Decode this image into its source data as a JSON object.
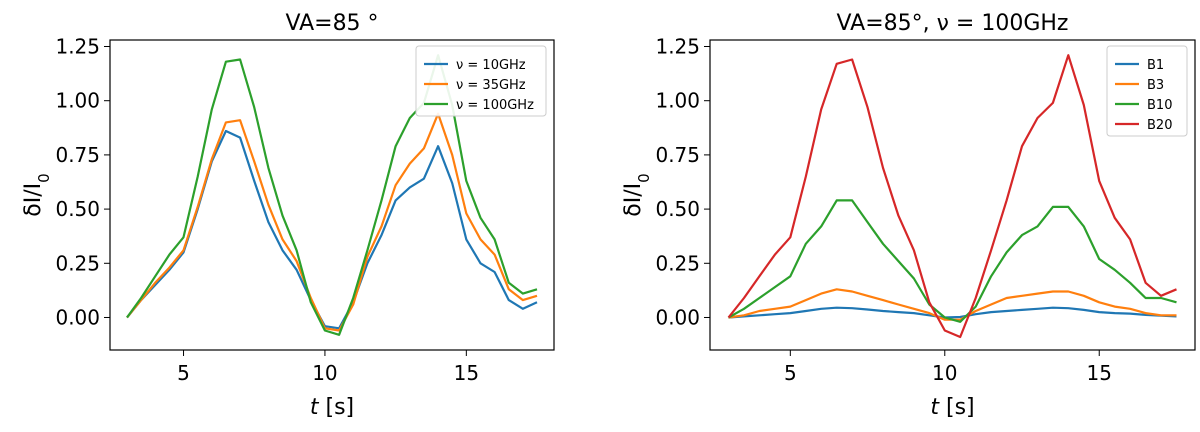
{
  "chart_data": [
    {
      "type": "line",
      "title": "VA=85$^\\circ$",
      "title_display": "VA=85 °",
      "xlabel": "t [s]",
      "ylabel": "δI/I0",
      "xlim": [
        2.4,
        18.1
      ],
      "ylim": [
        -0.15,
        1.28
      ],
      "xticks": [
        5,
        10,
        15
      ],
      "xtick_labels": [
        "5",
        "10",
        "15"
      ],
      "yticks": [
        0,
        0.25,
        0.5,
        0.75,
        1.0,
        1.25
      ],
      "ytick_labels": [
        "0.00",
        "0.25",
        "0.50",
        "0.75",
        "1.00",
        "1.25"
      ],
      "grid": false,
      "legend_position": "upper-right",
      "x": [
        3.0,
        3.5,
        4.0,
        4.5,
        5.0,
        5.5,
        6.0,
        6.5,
        7.0,
        7.5,
        8.0,
        8.5,
        9.0,
        9.5,
        10.0,
        10.5,
        11.0,
        11.5,
        12.0,
        12.5,
        13.0,
        13.5,
        14.0,
        14.5,
        15.0,
        15.5,
        16.0,
        16.5,
        17.0,
        17.5
      ],
      "series": [
        {
          "name": "ν = 10GHz",
          "color": "#1f77b4",
          "values": [
            0.0,
            0.08,
            0.15,
            0.22,
            0.3,
            0.5,
            0.72,
            0.86,
            0.83,
            0.63,
            0.44,
            0.31,
            0.22,
            0.08,
            -0.04,
            -0.05,
            0.07,
            0.25,
            0.38,
            0.54,
            0.6,
            0.64,
            0.79,
            0.62,
            0.36,
            0.25,
            0.21,
            0.08,
            0.04,
            0.07
          ]
        },
        {
          "name": "ν = 35GHz",
          "color": "#ff7f0e",
          "values": [
            0.0,
            0.08,
            0.16,
            0.23,
            0.31,
            0.51,
            0.73,
            0.9,
            0.91,
            0.72,
            0.52,
            0.36,
            0.26,
            0.09,
            -0.05,
            -0.06,
            0.06,
            0.28,
            0.42,
            0.61,
            0.71,
            0.78,
            0.94,
            0.75,
            0.48,
            0.36,
            0.29,
            0.13,
            0.08,
            0.1
          ]
        },
        {
          "name": "ν = 100GHz",
          "color": "#2ca02c",
          "values": [
            0.0,
            0.09,
            0.19,
            0.29,
            0.37,
            0.65,
            0.96,
            1.18,
            1.19,
            0.97,
            0.69,
            0.47,
            0.31,
            0.07,
            -0.06,
            -0.08,
            0.09,
            0.31,
            0.54,
            0.79,
            0.92,
            0.99,
            1.21,
            0.98,
            0.63,
            0.46,
            0.36,
            0.16,
            0.11,
            0.13
          ]
        }
      ]
    },
    {
      "type": "line",
      "title": "VA=85$^\\circ$,$\\nu$ = 100GHz",
      "title_display": "VA=85°, ν = 100GHz",
      "xlabel": "t [s]",
      "ylabel": "δI/I0",
      "xlim": [
        2.4,
        18.1
      ],
      "ylim": [
        -0.15,
        1.28
      ],
      "xticks": [
        5,
        10,
        15
      ],
      "xtick_labels": [
        "5",
        "10",
        "15"
      ],
      "yticks": [
        0,
        0.25,
        0.5,
        0.75,
        1.0,
        1.25
      ],
      "ytick_labels": [
        "0.00",
        "0.25",
        "0.50",
        "0.75",
        "1.00",
        "1.25"
      ],
      "grid": false,
      "legend_position": "upper-right",
      "x": [
        3.0,
        3.5,
        4.0,
        4.5,
        5.0,
        5.5,
        6.0,
        6.5,
        7.0,
        7.5,
        8.0,
        8.5,
        9.0,
        9.5,
        10.0,
        10.5,
        11.0,
        11.5,
        12.0,
        12.5,
        13.0,
        13.5,
        14.0,
        14.5,
        15.0,
        15.5,
        16.0,
        16.5,
        17.0,
        17.5
      ],
      "series": [
        {
          "name": "B1",
          "color": "#1f77b4",
          "values": [
            0.0,
            0.005,
            0.01,
            0.015,
            0.02,
            0.03,
            0.04,
            0.045,
            0.043,
            0.037,
            0.03,
            0.025,
            0.02,
            0.01,
            0.0,
            0.002,
            0.015,
            0.025,
            0.03,
            0.035,
            0.04,
            0.045,
            0.043,
            0.035,
            0.025,
            0.02,
            0.018,
            0.012,
            0.008,
            0.005
          ]
        },
        {
          "name": "B3",
          "color": "#ff7f0e",
          "values": [
            0.0,
            0.01,
            0.03,
            0.04,
            0.05,
            0.08,
            0.11,
            0.13,
            0.12,
            0.1,
            0.08,
            0.06,
            0.04,
            0.02,
            -0.01,
            -0.01,
            0.03,
            0.06,
            0.09,
            0.1,
            0.11,
            0.12,
            0.12,
            0.1,
            0.07,
            0.05,
            0.04,
            0.02,
            0.01,
            0.01
          ]
        },
        {
          "name": "B10",
          "color": "#2ca02c",
          "values": [
            0.0,
            0.04,
            0.09,
            0.14,
            0.19,
            0.34,
            0.42,
            0.54,
            0.54,
            0.44,
            0.34,
            0.26,
            0.18,
            0.06,
            0.0,
            -0.02,
            0.05,
            0.19,
            0.3,
            0.38,
            0.42,
            0.51,
            0.51,
            0.42,
            0.27,
            0.22,
            0.16,
            0.09,
            0.09,
            0.07
          ]
        },
        {
          "name": "B20",
          "color": "#d62728",
          "values": [
            0.0,
            0.09,
            0.19,
            0.29,
            0.37,
            0.65,
            0.96,
            1.17,
            1.19,
            0.97,
            0.69,
            0.47,
            0.31,
            0.07,
            -0.06,
            -0.09,
            0.09,
            0.31,
            0.54,
            0.79,
            0.92,
            0.99,
            1.21,
            0.98,
            0.63,
            0.46,
            0.36,
            0.16,
            0.1,
            0.13
          ]
        }
      ]
    }
  ]
}
